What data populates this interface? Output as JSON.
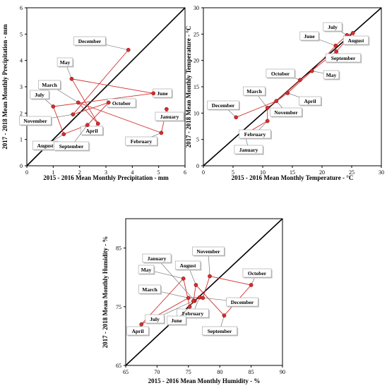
{
  "chart_data": [
    {
      "type": "scatter",
      "xlabel": "2015 - 2016 Mean Monthly Precipitation - mm",
      "ylabel": "2017 - 2018 Mean Monthly Precipitation - mm",
      "xlim": [
        0,
        6
      ],
      "ylim": [
        0,
        6
      ],
      "xticks": [
        "0",
        "1",
        "2",
        "3",
        "4",
        "5",
        "6"
      ],
      "yticks": [
        "0",
        "1",
        "2",
        "3",
        "4",
        "5",
        "6"
      ],
      "reference_line": "1:1",
      "points": [
        {
          "label": "January",
          "x": 5.3,
          "y": 2.15
        },
        {
          "label": "February",
          "x": 5.1,
          "y": 1.25
        },
        {
          "label": "March",
          "x": 1.95,
          "y": 2.4
        },
        {
          "label": "April",
          "x": 2.7,
          "y": 1.6
        },
        {
          "label": "May",
          "x": 1.7,
          "y": 3.3
        },
        {
          "label": "June",
          "x": 4.8,
          "y": 2.75
        },
        {
          "label": "July",
          "x": 1.0,
          "y": 2.25
        },
        {
          "label": "August",
          "x": 1.4,
          "y": 1.2
        },
        {
          "label": "September",
          "x": 2.3,
          "y": 1.55
        },
        {
          "label": "October",
          "x": 3.1,
          "y": 2.4
        },
        {
          "label": "November",
          "x": 1.75,
          "y": 1.95
        },
        {
          "label": "December",
          "x": 3.85,
          "y": 4.4
        }
      ],
      "series_color": "#d32f2f",
      "line_order": [
        "January",
        "February",
        "March",
        "April",
        "May",
        "June",
        "July",
        "August",
        "September",
        "October",
        "November",
        "December"
      ]
    },
    {
      "type": "scatter",
      "xlabel": "2015 - 2016 Mean Monthly Temperature - °C",
      "ylabel": "2017 - 2018 Mean Monthly Temperature - °C",
      "xlim": [
        0,
        30
      ],
      "ylim": [
        0,
        30
      ],
      "xticks": [
        "0",
        "5",
        "10",
        "15",
        "20",
        "25",
        "30"
      ],
      "yticks": [
        "0",
        "5",
        "10",
        "15",
        "20",
        "25",
        "30"
      ],
      "reference_line": "1:1",
      "points": [
        {
          "label": "January",
          "x": 7.0,
          "y": 6.0
        },
        {
          "label": "February",
          "x": 10.8,
          "y": 8.5
        },
        {
          "label": "March",
          "x": 10.8,
          "y": 11.0
        },
        {
          "label": "April",
          "x": 14.2,
          "y": 13.8
        },
        {
          "label": "May",
          "x": 18.3,
          "y": 18.0
        },
        {
          "label": "June",
          "x": 22.3,
          "y": 22.8
        },
        {
          "label": "July",
          "x": 24.2,
          "y": 24.8
        },
        {
          "label": "August",
          "x": 25.2,
          "y": 25.2
        },
        {
          "label": "September",
          "x": 22.4,
          "y": 21.7
        },
        {
          "label": "October",
          "x": 16.3,
          "y": 16.3
        },
        {
          "label": "November",
          "x": 12.3,
          "y": 12.3
        },
        {
          "label": "December",
          "x": 5.5,
          "y": 9.2
        }
      ],
      "series_color": "#d32f2f",
      "line_order": [
        "January",
        "February",
        "March",
        "April",
        "May",
        "June",
        "July",
        "August",
        "September",
        "October",
        "November",
        "December"
      ]
    },
    {
      "type": "scatter",
      "xlabel": "2015 - 2016 Mean Monthly Humidity - %",
      "ylabel": "2017 - 2018 Mean Monthly Humidity - %",
      "xlim": [
        65,
        90
      ],
      "ylim": [
        65,
        90
      ],
      "xticks": [
        "65",
        "70",
        "75",
        "80",
        "85",
        "90"
      ],
      "yticks": [
        "65",
        "75",
        "85"
      ],
      "reference_line": "1:1",
      "points": [
        {
          "label": "January",
          "x": 76.0,
          "y": 76.0
        },
        {
          "label": "February",
          "x": 76.8,
          "y": 76.6
        },
        {
          "label": "March",
          "x": 75.0,
          "y": 76.5
        },
        {
          "label": "April",
          "x": 67.5,
          "y": 72.0
        },
        {
          "label": "May",
          "x": 74.2,
          "y": 79.8
        },
        {
          "label": "June",
          "x": 75.2,
          "y": 75.0
        },
        {
          "label": "July",
          "x": 75.8,
          "y": 76.0
        },
        {
          "label": "August",
          "x": 76.2,
          "y": 78.7
        },
        {
          "label": "September",
          "x": 80.7,
          "y": 73.5
        },
        {
          "label": "October",
          "x": 85.0,
          "y": 78.7
        },
        {
          "label": "November",
          "x": 78.4,
          "y": 80.2
        },
        {
          "label": "December",
          "x": 77.3,
          "y": 76.5
        }
      ],
      "series_color": "#d32f2f",
      "line_order": [
        "January",
        "February",
        "March",
        "April",
        "May",
        "June",
        "July",
        "August",
        "September",
        "October",
        "November",
        "December"
      ]
    }
  ]
}
